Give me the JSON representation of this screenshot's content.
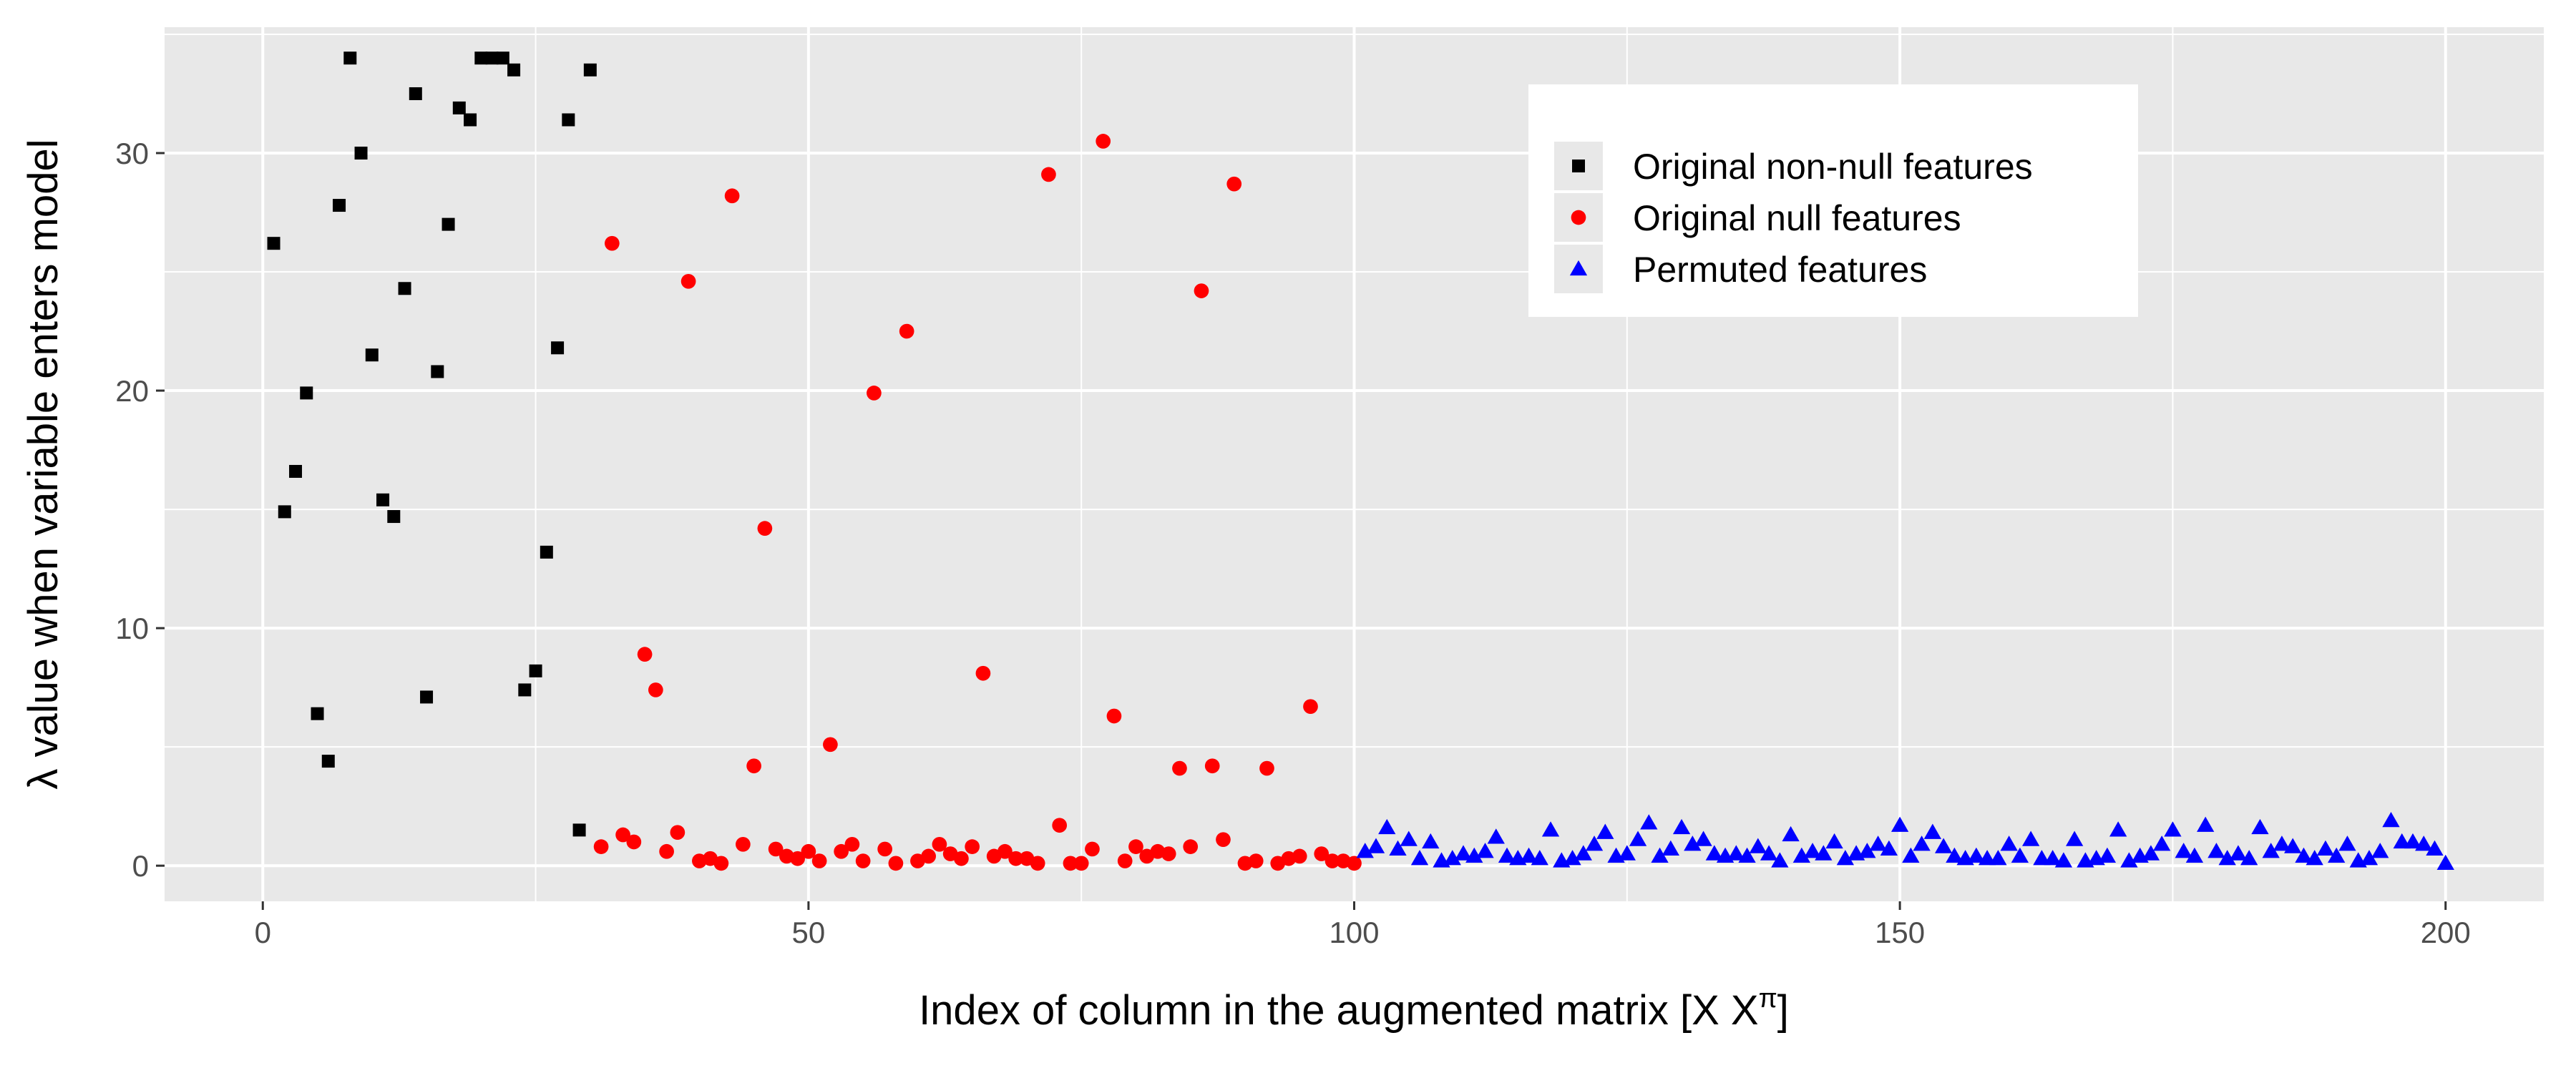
{
  "chart_data": {
    "type": "scatter",
    "xlabel": "Index of column in the augmented matrix [X X",
    "xlabel_superscript": "π",
    "xlabel_close": "]",
    "ylabel": "λ value when variable enters model",
    "xlim": [
      -9,
      209
    ],
    "ylim": [
      -1.5,
      35.3
    ],
    "x_ticks": [
      0,
      50,
      100,
      150,
      200
    ],
    "y_ticks": [
      0,
      10,
      20,
      30
    ],
    "grid": true,
    "legend_position": "top-right",
    "series": [
      {
        "name": "Original non-null features",
        "color": "#000000",
        "marker": "square",
        "x": [
          1,
          2,
          3,
          4,
          5,
          6,
          7,
          8,
          9,
          10,
          11,
          12,
          13,
          14,
          15,
          16,
          17,
          18,
          19,
          20,
          21,
          22,
          23,
          24,
          25,
          26,
          27,
          28,
          29,
          30
        ],
        "y": [
          26.2,
          14.9,
          16.6,
          19.9,
          6.4,
          4.4,
          27.8,
          34.0,
          30.0,
          21.5,
          15.4,
          14.7,
          24.3,
          32.5,
          7.1,
          20.8,
          27.0,
          31.9,
          31.4,
          34.0,
          34.0,
          34.0,
          33.5,
          7.4,
          8.2,
          13.2,
          21.8,
          31.4,
          1.5,
          33.5
        ]
      },
      {
        "name": "Original null features",
        "color": "#ff0000",
        "marker": "circle",
        "x": [
          31,
          32,
          33,
          34,
          35,
          36,
          37,
          38,
          39,
          40,
          41,
          42,
          43,
          44,
          45,
          46,
          47,
          48,
          49,
          50,
          51,
          52,
          53,
          54,
          55,
          56,
          57,
          58,
          59,
          60,
          61,
          62,
          63,
          64,
          65,
          66,
          67,
          68,
          69,
          70,
          71,
          72,
          73,
          74,
          75,
          76,
          77,
          78,
          79,
          80,
          81,
          82,
          83,
          84,
          85,
          86,
          87,
          88,
          89,
          90,
          91,
          92,
          93,
          94,
          95,
          96,
          97,
          98,
          99,
          100
        ],
        "y": [
          0.8,
          26.2,
          1.3,
          1.0,
          8.9,
          7.4,
          0.6,
          1.4,
          24.6,
          0.2,
          0.3,
          0.1,
          28.2,
          0.9,
          4.2,
          14.2,
          0.7,
          0.4,
          0.3,
          0.6,
          0.2,
          5.1,
          0.6,
          0.9,
          0.2,
          19.9,
          0.7,
          0.1,
          22.5,
          0.2,
          0.4,
          0.9,
          0.5,
          0.3,
          0.8,
          8.1,
          0.4,
          0.6,
          0.3,
          0.3,
          0.1,
          29.1,
          1.7,
          0.1,
          0.1,
          0.7,
          30.5,
          6.3,
          0.2,
          0.8,
          0.4,
          0.6,
          0.5,
          4.1,
          0.8,
          24.2,
          4.2,
          1.1,
          28.7,
          0.1,
          0.2,
          4.1,
          0.1,
          0.3,
          0.4,
          6.7,
          0.5,
          0.2,
          0.2,
          0.1
        ]
      },
      {
        "name": "Permuted features",
        "color": "#0000ff",
        "marker": "triangle",
        "x": [
          101,
          102,
          103,
          104,
          105,
          106,
          107,
          108,
          109,
          110,
          111,
          112,
          113,
          114,
          115,
          116,
          117,
          118,
          119,
          120,
          121,
          122,
          123,
          124,
          125,
          126,
          127,
          128,
          129,
          130,
          131,
          132,
          133,
          134,
          135,
          136,
          137,
          138,
          139,
          140,
          141,
          142,
          143,
          144,
          145,
          146,
          147,
          148,
          149,
          150,
          151,
          152,
          153,
          154,
          155,
          156,
          157,
          158,
          159,
          160,
          161,
          162,
          163,
          164,
          165,
          166,
          167,
          168,
          169,
          170,
          171,
          172,
          173,
          174,
          175,
          176,
          177,
          178,
          179,
          180,
          181,
          182,
          183,
          184,
          185,
          186,
          187,
          188,
          189,
          190,
          191,
          192,
          193,
          194,
          195,
          196,
          197,
          198,
          199,
          200
        ],
        "y": [
          0.6,
          0.8,
          1.6,
          0.7,
          1.1,
          0.3,
          1.0,
          0.2,
          0.3,
          0.5,
          0.4,
          0.6,
          1.2,
          0.4,
          0.3,
          0.4,
          0.3,
          1.5,
          0.2,
          0.3,
          0.5,
          0.9,
          1.4,
          0.4,
          0.5,
          1.1,
          1.8,
          0.4,
          0.7,
          1.6,
          0.9,
          1.1,
          0.5,
          0.4,
          0.5,
          0.4,
          0.8,
          0.5,
          0.2,
          1.3,
          0.4,
          0.6,
          0.5,
          1.0,
          0.3,
          0.5,
          0.6,
          0.9,
          0.7,
          1.7,
          0.4,
          0.9,
          1.4,
          0.8,
          0.4,
          0.3,
          0.4,
          0.3,
          0.3,
          0.9,
          0.4,
          1.1,
          0.3,
          0.3,
          0.2,
          1.1,
          0.2,
          0.3,
          0.4,
          1.5,
          0.2,
          0.4,
          0.5,
          0.9,
          1.5,
          0.6,
          0.4,
          1.7,
          0.6,
          0.3,
          0.5,
          0.3,
          1.6,
          0.6,
          0.9,
          0.8,
          0.4,
          0.3,
          0.7,
          0.4,
          0.9,
          0.2,
          0.3,
          0.6,
          1.9,
          1.0,
          1.0,
          0.9,
          0.7,
          0.1
        ]
      }
    ]
  }
}
